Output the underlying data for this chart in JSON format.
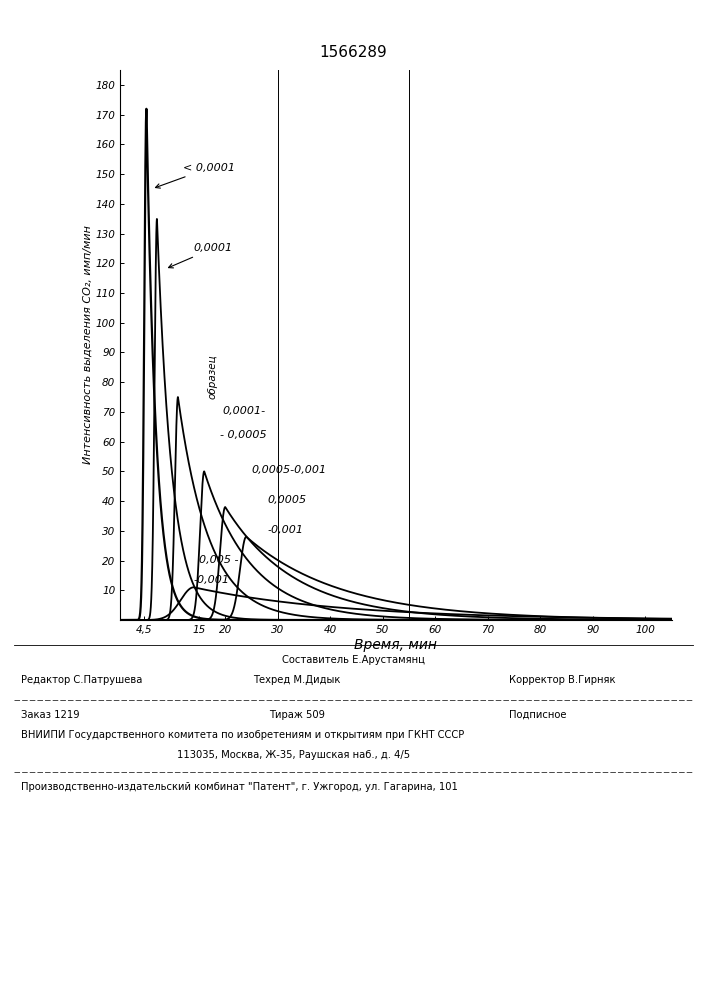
{
  "title": "1566289",
  "ylabel": "Интенсивность выделения CO₂, имп/мин",
  "xlabel": "Время, мин",
  "yticks": [
    10,
    20,
    30,
    40,
    50,
    60,
    70,
    80,
    90,
    100,
    110,
    120,
    130,
    140,
    150,
    160,
    170,
    180
  ],
  "xtick_labels": [
    "4,5",
    "15",
    "20",
    "30",
    "40",
    "50",
    "60",
    "70",
    "80",
    "90",
    "100"
  ],
  "xtick_values": [
    4.5,
    15,
    20,
    30,
    40,
    50,
    60,
    70,
    80,
    90,
    100
  ],
  "xlim": [
    0,
    105
  ],
  "ylim": [
    0,
    185
  ],
  "background_color": "#ffffff",
  "footer_sestavitel": "Составитель Е.Арустамянц",
  "footer_redaktor": "Редактор С.Патрушева",
  "footer_tehred": "Техред М.Дидык",
  "footer_korrektor": "Корректор В.Гирняк",
  "footer_zakaz": "Заказ 1219",
  "footer_tirazh": "Тираж 509",
  "footer_podpisnoe": "Подписное",
  "footer_vniipи": "ВНИИПИ Государственного комитета по изобретениям и открытиям при ГКНТ СССР",
  "footer_addr": "113035, Москва, Ж-35, Раушская наб., д. 4/5",
  "footer_patent": "Производственно-издательский комбинат \"Патент\", г. Ужгород, ул. Гагарина, 101"
}
